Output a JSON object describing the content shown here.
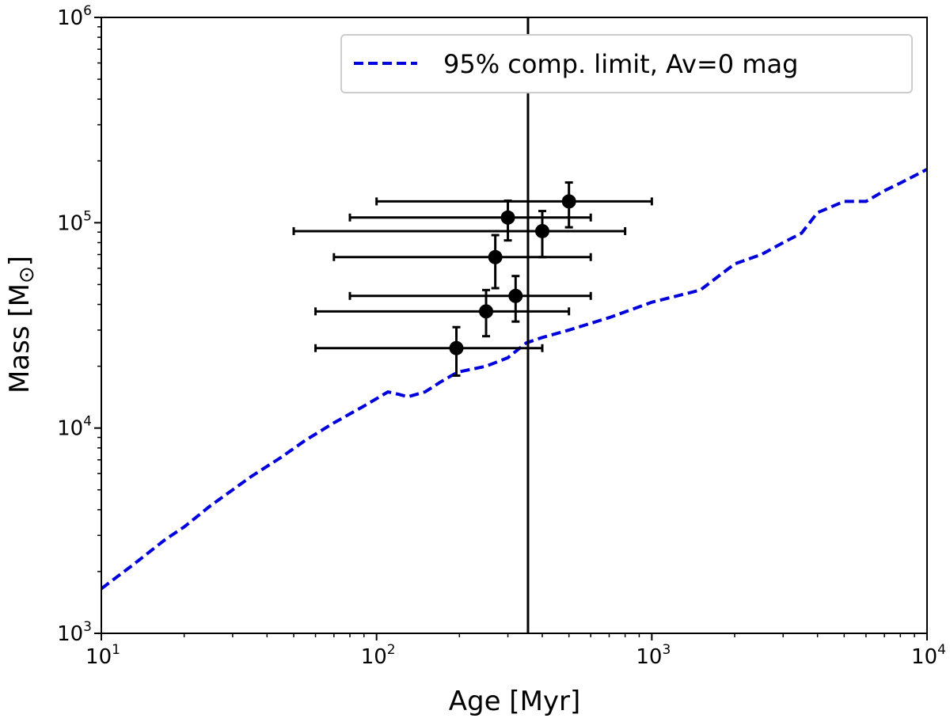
{
  "chart_data": {
    "type": "scatter",
    "xlabel": "Age [Myr]",
    "ylabel_main": "Mass [M",
    "ylabel_symbol": "⊙",
    "ylabel_end": "]",
    "xscale": "log",
    "yscale": "log",
    "xlim": [
      10,
      10000
    ],
    "ylim": [
      1000,
      1000000
    ],
    "x_ticks": [
      {
        "value": 10,
        "base": "10",
        "exp": "1"
      },
      {
        "value": 100,
        "base": "10",
        "exp": "2"
      },
      {
        "value": 1000,
        "base": "10",
        "exp": "3"
      },
      {
        "value": 10000,
        "base": "10",
        "exp": "4"
      }
    ],
    "y_ticks": [
      {
        "value": 1000,
        "base": "10",
        "exp": "3"
      },
      {
        "value": 10000,
        "base": "10",
        "exp": "4"
      },
      {
        "value": 100000,
        "base": "10",
        "exp": "5"
      },
      {
        "value": 1000000,
        "base": "10",
        "exp": "6"
      }
    ],
    "grid": false,
    "legend_position": "top-right",
    "legend_label": "95% comp. limit, Av=0 mag",
    "vertical_line_x": 355,
    "colors": {
      "limit_line": "#0000dd",
      "points": "#000000"
    },
    "points": [
      {
        "x": 500,
        "y": 127000,
        "x_lo": 100,
        "x_hi": 1000,
        "y_lo": 95000,
        "y_hi": 157000
      },
      {
        "x": 300,
        "y": 106000,
        "x_lo": 80,
        "x_hi": 600,
        "y_lo": 82000,
        "y_hi": 128000
      },
      {
        "x": 400,
        "y": 91000,
        "x_lo": 50,
        "x_hi": 800,
        "y_lo": 68000,
        "y_hi": 114000
      },
      {
        "x": 270,
        "y": 68000,
        "x_lo": 70,
        "x_hi": 600,
        "y_lo": 48000,
        "y_hi": 87000
      },
      {
        "x": 320,
        "y": 44000,
        "x_lo": 80,
        "x_hi": 600,
        "y_lo": 33000,
        "y_hi": 55000
      },
      {
        "x": 250,
        "y": 37000,
        "x_lo": 60,
        "x_hi": 500,
        "y_lo": 28000,
        "y_hi": 47000
      },
      {
        "x": 195,
        "y": 24500,
        "x_lo": 60,
        "x_hi": 400,
        "y_lo": 18000,
        "y_hi": 31000
      }
    ],
    "limit_curve": {
      "name": "95% comp. limit, Av=0 mag",
      "x": [
        10,
        13,
        17,
        20,
        25,
        30,
        35,
        45,
        55,
        70,
        90,
        110,
        120,
        130,
        150,
        170,
        190,
        200,
        250,
        300,
        350,
        400,
        500,
        700,
        1000,
        1500,
        2000,
        2500,
        3000,
        3500,
        4000,
        5000,
        6000,
        7000,
        8000,
        10000
      ],
      "y": [
        1650,
        2150,
        2850,
        3300,
        4200,
        5000,
        5800,
        7200,
        8700,
        10600,
        12800,
        15000,
        14600,
        14200,
        15000,
        16700,
        18200,
        18800,
        20000,
        22000,
        26000,
        27600,
        30000,
        34500,
        41000,
        47000,
        63000,
        70000,
        80000,
        89000,
        112000,
        127000,
        127000,
        143000,
        156000,
        182000
      ]
    }
  }
}
